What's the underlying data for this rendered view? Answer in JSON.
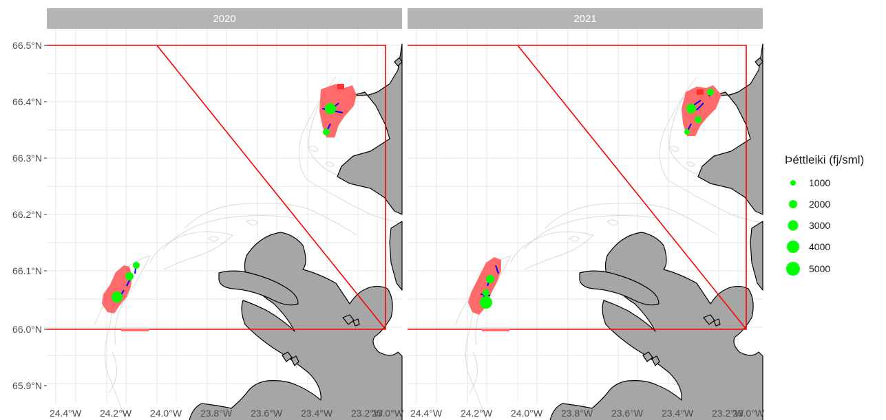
{
  "panels": [
    {
      "label": "2020"
    },
    {
      "label": "2021"
    }
  ],
  "axes": {
    "x_ticks": [
      "24.4°W",
      "24.2°W",
      "24.0°W",
      "23.8°W",
      "23.6°W",
      "23.4°W",
      "23.2°W",
      "23.0°W"
    ],
    "y_ticks": [
      "66.5°N",
      "66.4°N",
      "66.3°N",
      "66.2°N",
      "66.1°N",
      "66.0°N",
      "65.9°N"
    ]
  },
  "legend": {
    "title": "Þéttleiki (fj/sml)",
    "items": [
      {
        "label": "1000"
      },
      {
        "label": "2000"
      },
      {
        "label": "3000"
      },
      {
        "label": "4000"
      },
      {
        "label": "5000"
      }
    ]
  },
  "colors": {
    "panel_bg": "#ffffff",
    "strip_bg": "#b3b3b3",
    "gridline": "#e5e5e5",
    "land": "#a6a6a6",
    "land_outline": "#000000",
    "depth_contour": "#d9d9d9",
    "area_boundary": "#ff0000",
    "survey_cells": "#ff6b6b",
    "density_points": "#00ff00",
    "tow_lines": "#0000ff"
  }
}
